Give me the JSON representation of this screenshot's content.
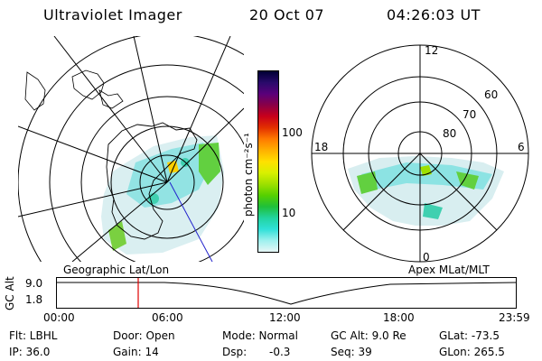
{
  "header": {
    "title": "Ultraviolet Imager",
    "date": "20 Oct 07",
    "time": "04:26:03 UT"
  },
  "colorbar": {
    "unit": "photon cm⁻²s⁻¹",
    "ticks": [
      "100",
      "10"
    ],
    "colors": [
      "#000033",
      "#2a0a6b",
      "#5a007a",
      "#8a0046",
      "#c8001a",
      "#e33000",
      "#ff7a00",
      "#ffb000",
      "#ffe000",
      "#d8f000",
      "#9ee000",
      "#55d000",
      "#1fbf3a",
      "#22d4a0",
      "#30e0d8",
      "#9ef0ee",
      "#e6f6f6"
    ]
  },
  "left_map": {
    "label": "Geographic Lat/Lon"
  },
  "right_map": {
    "label": "Apex MLat/MLT",
    "hour_labels": [
      "12",
      "18",
      "6",
      "0"
    ],
    "lat_labels": [
      "60",
      "70",
      "80"
    ]
  },
  "timeline": {
    "axis_label": "GC Alt",
    "y_ticks": [
      "9.0",
      "1.8"
    ],
    "x_ticks": [
      "00:00",
      "06:00",
      "12:00",
      "18:00",
      "23:59"
    ],
    "marker_color": "#e00000"
  },
  "status": {
    "flt": "Flt: LBHL",
    "door": "Door: Open",
    "mode": "Mode: Normal",
    "gc_alt": "GC Alt: 9.0 Re",
    "glat": "GLat: -73.5",
    "ip": "IP: 36.0",
    "gain": "Gain: 14",
    "dsp_label": "Dsp:",
    "dsp_value": "-0.3",
    "seq": "Seq: 39",
    "glon": "GLon: 265.5"
  }
}
